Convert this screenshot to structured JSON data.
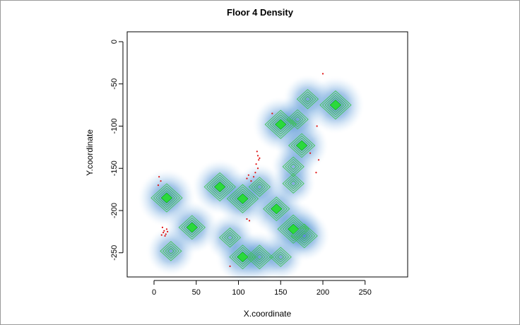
{
  "chart_data": {
    "type": "heatmap",
    "title": "Floor 4 Density",
    "xlabel": "X.coordinate",
    "ylabel": "Y.coordinate",
    "xlim": [
      -30,
      300
    ],
    "ylim": [
      -280,
      10
    ],
    "x_ticks": [
      0,
      50,
      100,
      150,
      200,
      250
    ],
    "y_ticks": [
      0,
      -50,
      -100,
      -150,
      -200,
      -250
    ],
    "density_clusters": [
      {
        "x": 15,
        "y": -185,
        "intensity": 1.0
      },
      {
        "x": 45,
        "y": -220,
        "intensity": 0.8
      },
      {
        "x": 20,
        "y": -248,
        "intensity": 0.6
      },
      {
        "x": 78,
        "y": -172,
        "intensity": 0.9
      },
      {
        "x": 105,
        "y": -186,
        "intensity": 0.9
      },
      {
        "x": 145,
        "y": -198,
        "intensity": 0.8
      },
      {
        "x": 125,
        "y": -172,
        "intensity": 0.5
      },
      {
        "x": 90,
        "y": -232,
        "intensity": 0.6
      },
      {
        "x": 105,
        "y": -255,
        "intensity": 0.8
      },
      {
        "x": 125,
        "y": -255,
        "intensity": 0.7
      },
      {
        "x": 150,
        "y": -255,
        "intensity": 0.5
      },
      {
        "x": 165,
        "y": -222,
        "intensity": 1.0
      },
      {
        "x": 178,
        "y": -230,
        "intensity": 0.7
      },
      {
        "x": 150,
        "y": -98,
        "intensity": 0.9
      },
      {
        "x": 175,
        "y": -123,
        "intensity": 0.8
      },
      {
        "x": 170,
        "y": -92,
        "intensity": 0.6
      },
      {
        "x": 165,
        "y": -148,
        "intensity": 0.4
      },
      {
        "x": 165,
        "y": -168,
        "intensity": 0.4
      },
      {
        "x": 215,
        "y": -75,
        "intensity": 1.0
      },
      {
        "x": 182,
        "y": -68,
        "intensity": 0.6
      }
    ],
    "points": [
      {
        "x": 6,
        "y": -160
      },
      {
        "x": 8,
        "y": -165
      },
      {
        "x": 5,
        "y": -170
      },
      {
        "x": 10,
        "y": -220
      },
      {
        "x": 12,
        "y": -224
      },
      {
        "x": 14,
        "y": -228
      },
      {
        "x": 11,
        "y": -226
      },
      {
        "x": 15,
        "y": -222
      },
      {
        "x": 13,
        "y": -230
      },
      {
        "x": 16,
        "y": -225
      },
      {
        "x": 9,
        "y": -229
      },
      {
        "x": 122,
        "y": -130
      },
      {
        "x": 123,
        "y": -135
      },
      {
        "x": 124,
        "y": -140
      },
      {
        "x": 121,
        "y": -145
      },
      {
        "x": 125,
        "y": -138
      },
      {
        "x": 123,
        "y": -150
      },
      {
        "x": 120,
        "y": -155
      },
      {
        "x": 118,
        "y": -160
      },
      {
        "x": 115,
        "y": -165
      },
      {
        "x": 112,
        "y": -158
      },
      {
        "x": 110,
        "y": -162
      },
      {
        "x": 110,
        "y": -210
      },
      {
        "x": 113,
        "y": -212
      },
      {
        "x": 90,
        "y": -266
      },
      {
        "x": 200,
        "y": -38
      },
      {
        "x": 193,
        "y": -100
      },
      {
        "x": 195,
        "y": -140
      },
      {
        "x": 192,
        "y": -155
      },
      {
        "x": 185,
        "y": -132
      },
      {
        "x": 140,
        "y": -85
      }
    ]
  }
}
